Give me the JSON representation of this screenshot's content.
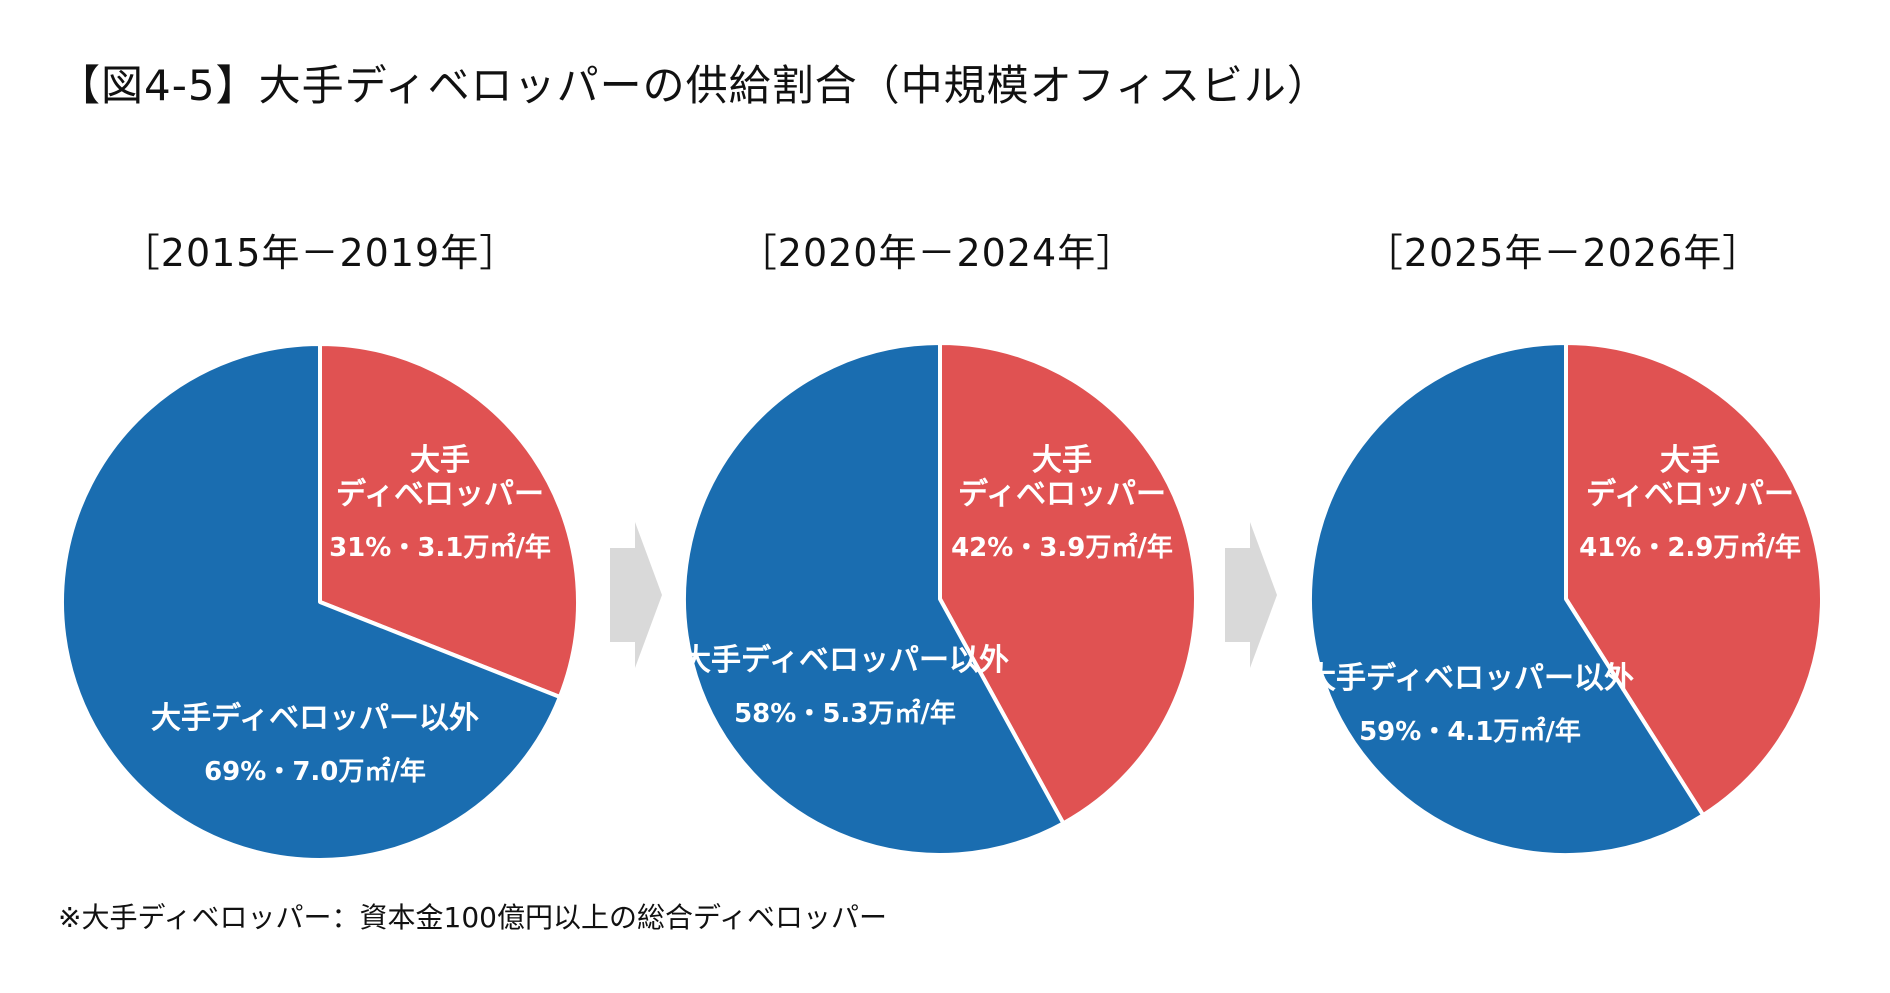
{
  "title": "【図4-5】大手ディベロッパーの供給割合（中規模オフィスビル）",
  "colors": {
    "major": "#e05252",
    "other": "#1a6db0",
    "arrow": "#d9d9d9",
    "stroke": "#ffffff"
  },
  "chart_data": [
    {
      "type": "pie",
      "period": "［2015年－2019年］",
      "slices": [
        {
          "name": "大手ディベロッパー",
          "name_lines": [
            "大手",
            "ディベロッパー"
          ],
          "percent": 31,
          "value_label": "31%・3.1万㎡/年",
          "color": "#e05252"
        },
        {
          "name": "大手ディベロッパー以外",
          "name_lines": [
            "大手ディベロッパー以外"
          ],
          "percent": 69,
          "value_label": "69%・7.0万㎡/年",
          "color": "#1a6db0"
        }
      ]
    },
    {
      "type": "pie",
      "period": "［2020年－2024年］",
      "slices": [
        {
          "name": "大手ディベロッパー",
          "name_lines": [
            "大手",
            "ディベロッパー"
          ],
          "percent": 42,
          "value_label": "42%・3.9万㎡/年",
          "color": "#e05252"
        },
        {
          "name": "大手ディベロッパー以外",
          "name_lines": [
            "大手ディベロッパー以外"
          ],
          "percent": 58,
          "value_label": "58%・5.3万㎡/年",
          "color": "#1a6db0"
        }
      ]
    },
    {
      "type": "pie",
      "period": "［2025年－2026年］",
      "slices": [
        {
          "name": "大手ディベロッパー",
          "name_lines": [
            "大手",
            "ディベロッパー"
          ],
          "percent": 41,
          "value_label": "41%・2.9万㎡/年",
          "color": "#e05252"
        },
        {
          "name": "大手ディベロッパー以外",
          "name_lines": [
            "大手ディベロッパー以外"
          ],
          "percent": 59,
          "value_label": "59%・4.1万㎡/年",
          "color": "#1a6db0"
        }
      ]
    }
  ],
  "footnote": "※大手ディベロッパー：資本金100億円以上の総合ディベロッパー"
}
